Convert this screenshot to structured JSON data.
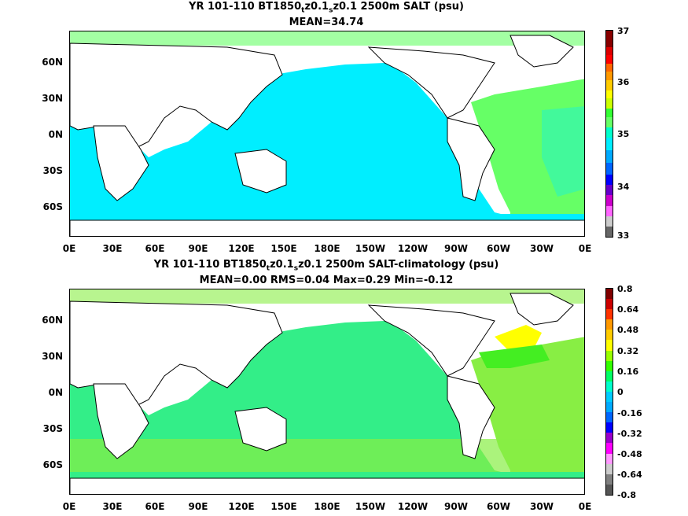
{
  "panels": [
    {
      "title_line1_pre": "YR 101-110 BT1850",
      "title_sub1": "t",
      "title_mid": "z0.1",
      "title_sub2": "s",
      "title_line1_post": "z0.1 2500m SALT (psu)",
      "title_line2": "MEAN=34.74",
      "lat_labels": [
        "60N",
        "30N",
        "0N",
        "30S",
        "60S"
      ],
      "lon_labels": [
        "0E",
        "30E",
        "60E",
        "90E",
        "120E",
        "150E",
        "180E",
        "150W",
        "120W",
        "90W",
        "60W",
        "30W",
        "0E"
      ],
      "colorbar_labels": [
        "37",
        "36",
        "35",
        "34",
        "33"
      ],
      "colorbar_colors": [
        "#ff00ff",
        "#ff66ff",
        "#9900ff",
        "#0000ff",
        "#0066ff",
        "#00aaff",
        "#00eeff",
        "#00ff99",
        "#66ff33",
        "#ccff00",
        "#ffff00",
        "#ffcc00",
        "#ff9900",
        "#ff6600",
        "#ff0000",
        "#cc0000",
        "#880000"
      ],
      "ocean_colors": {
        "pacific_indian": "#00eeff",
        "atlantic": "#66ff66"
      }
    },
    {
      "title_line1_pre": "YR 101-110 BT1850",
      "title_sub1": "t",
      "title_mid": "z0.1",
      "title_sub2": "s",
      "title_line1_post": "z0.1 2500m SALT-climatology (psu)",
      "title_line2": "MEAN=0.00   RMS=0.04   Max=0.29   Min=-0.12",
      "lat_labels": [
        "60N",
        "30N",
        "0N",
        "30S",
        "60S"
      ],
      "lon_labels": [
        "0E",
        "30E",
        "60E",
        "90E",
        "120E",
        "150E",
        "180E",
        "150W",
        "120W",
        "90W",
        "60W",
        "30W",
        "0E"
      ],
      "colorbar_labels": [
        "0.8",
        "0.64",
        "0.48",
        "0.32",
        "0.16",
        "0",
        "-0.16",
        "-0.32",
        "-0.48",
        "-0.64",
        "-0.8"
      ],
      "colorbar_colors": [
        "#808080",
        "#ff00ff",
        "#9900cc",
        "#0000ff",
        "#0066ff",
        "#00aaff",
        "#00ccff",
        "#00ffcc",
        "#00ff66",
        "#33ff00",
        "#99ff00",
        "#ffff00",
        "#ffcc00",
        "#ff9900",
        "#ff3300",
        "#cc0000",
        "#800000"
      ],
      "ocean_colors": {
        "pacific_indian": "#33ee88",
        "atlantic": "#88ee44"
      }
    }
  ]
}
